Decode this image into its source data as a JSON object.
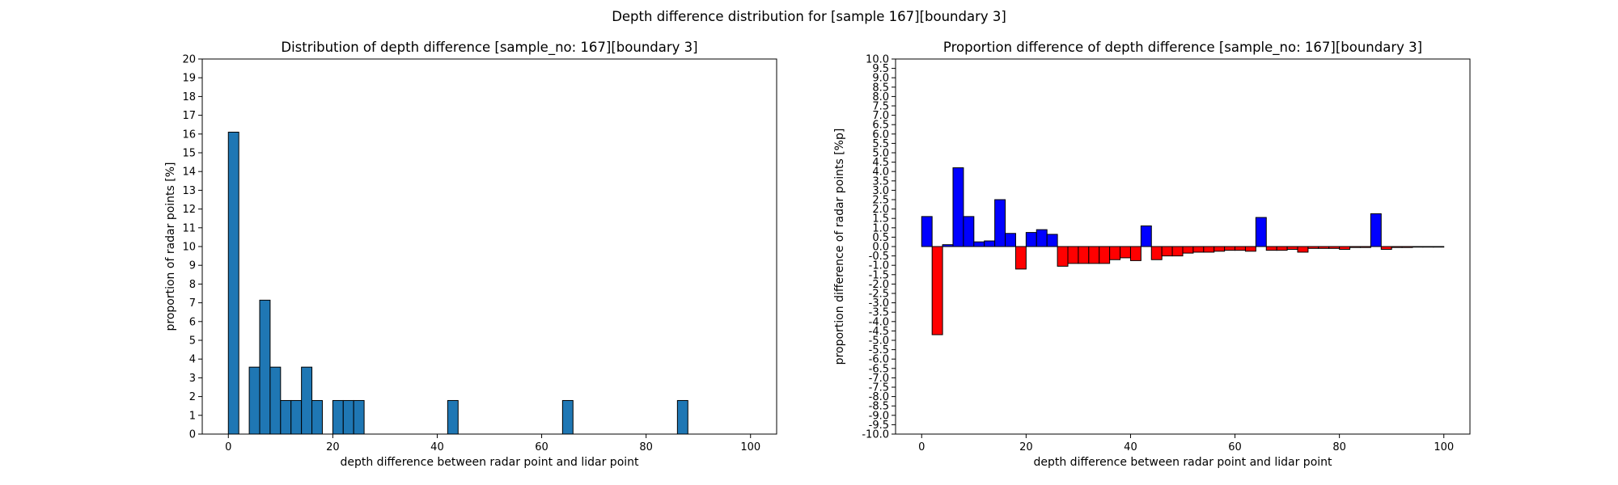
{
  "figure": {
    "suptitle": "Depth difference distribution for [sample 167][boundary 3]"
  },
  "colors": {
    "hist_fill": "#1f77b4",
    "positive": "#0000ff",
    "negative": "#ff0000",
    "edge": "#000000"
  },
  "chart_data": [
    {
      "type": "bar",
      "title": "Distribution of depth difference [sample_no: 167][boundary 3]",
      "xlabel": "depth difference between radar point and lidar point",
      "ylabel": "proportion of radar points [%]",
      "xlim": [
        -5,
        105
      ],
      "ylim": [
        0,
        20
      ],
      "xticks": [
        0,
        20,
        40,
        60,
        80,
        100
      ],
      "yticks": [
        0,
        1,
        2,
        3,
        4,
        5,
        6,
        7,
        8,
        9,
        10,
        11,
        12,
        13,
        14,
        15,
        16,
        17,
        18,
        19,
        20
      ],
      "bin_width": 2,
      "bins": [
        {
          "x": 1,
          "value": 16.1
        },
        {
          "x": 5,
          "value": 3.57
        },
        {
          "x": 7,
          "value": 7.14
        },
        {
          "x": 9,
          "value": 3.57
        },
        {
          "x": 11,
          "value": 1.79
        },
        {
          "x": 13,
          "value": 1.79
        },
        {
          "x": 15,
          "value": 3.57
        },
        {
          "x": 17,
          "value": 1.79
        },
        {
          "x": 21,
          "value": 1.79
        },
        {
          "x": 23,
          "value": 1.79
        },
        {
          "x": 25,
          "value": 1.79
        },
        {
          "x": 43,
          "value": 1.79
        },
        {
          "x": 65,
          "value": 1.79
        },
        {
          "x": 87,
          "value": 1.79
        }
      ]
    },
    {
      "type": "bar",
      "title": "Proportion difference of depth difference [sample_no: 167][boundary 3]",
      "xlabel": "depth difference between radar point and lidar point",
      "ylabel": "proportion difference of radar points [%p]",
      "xlim": [
        -5,
        105
      ],
      "ylim": [
        -10,
        10
      ],
      "xticks": [
        0,
        20,
        40,
        60,
        80,
        100
      ],
      "yticks": [
        -10.0,
        -9.5,
        -9.0,
        -8.5,
        -8.0,
        -7.5,
        -7.0,
        -6.5,
        -6.0,
        -5.5,
        -5.0,
        -4.5,
        -4.0,
        -3.5,
        -3.0,
        -2.5,
        -2.0,
        -1.5,
        -1.0,
        -0.5,
        0.0,
        0.5,
        1.0,
        1.5,
        2.0,
        2.5,
        3.0,
        3.5,
        4.0,
        4.5,
        5.0,
        5.5,
        6.0,
        6.5,
        7.0,
        7.5,
        8.0,
        8.5,
        9.0,
        9.5,
        10.0
      ],
      "bin_width": 2,
      "bins": [
        {
          "x": 1,
          "value": 1.6
        },
        {
          "x": 3,
          "value": -4.7
        },
        {
          "x": 5,
          "value": 0.1
        },
        {
          "x": 7,
          "value": 4.2
        },
        {
          "x": 9,
          "value": 1.6
        },
        {
          "x": 11,
          "value": 0.25
        },
        {
          "x": 13,
          "value": 0.3
        },
        {
          "x": 15,
          "value": 2.5
        },
        {
          "x": 17,
          "value": 0.7
        },
        {
          "x": 19,
          "value": -1.2
        },
        {
          "x": 21,
          "value": 0.75
        },
        {
          "x": 23,
          "value": 0.9
        },
        {
          "x": 25,
          "value": 0.65
        },
        {
          "x": 27,
          "value": -1.05
        },
        {
          "x": 29,
          "value": -0.9
        },
        {
          "x": 31,
          "value": -0.9
        },
        {
          "x": 33,
          "value": -0.9
        },
        {
          "x": 35,
          "value": -0.9
        },
        {
          "x": 37,
          "value": -0.7
        },
        {
          "x": 39,
          "value": -0.6
        },
        {
          "x": 41,
          "value": -0.75
        },
        {
          "x": 43,
          "value": 1.1
        },
        {
          "x": 45,
          "value": -0.7
        },
        {
          "x": 47,
          "value": -0.5
        },
        {
          "x": 49,
          "value": -0.5
        },
        {
          "x": 51,
          "value": -0.35
        },
        {
          "x": 53,
          "value": -0.3
        },
        {
          "x": 55,
          "value": -0.3
        },
        {
          "x": 57,
          "value": -0.25
        },
        {
          "x": 59,
          "value": -0.2
        },
        {
          "x": 61,
          "value": -0.2
        },
        {
          "x": 63,
          "value": -0.25
        },
        {
          "x": 65,
          "value": 1.55
        },
        {
          "x": 67,
          "value": -0.2
        },
        {
          "x": 69,
          "value": -0.2
        },
        {
          "x": 71,
          "value": -0.15
        },
        {
          "x": 73,
          "value": -0.3
        },
        {
          "x": 75,
          "value": -0.1
        },
        {
          "x": 77,
          "value": -0.1
        },
        {
          "x": 79,
          "value": -0.1
        },
        {
          "x": 81,
          "value": -0.15
        },
        {
          "x": 83,
          "value": -0.05
        },
        {
          "x": 85,
          "value": -0.05
        },
        {
          "x": 87,
          "value": 1.75
        },
        {
          "x": 89,
          "value": -0.15
        },
        {
          "x": 91,
          "value": -0.05
        },
        {
          "x": 93,
          "value": -0.05
        },
        {
          "x": 95,
          "value": -0.03
        },
        {
          "x": 97,
          "value": -0.03
        },
        {
          "x": 99,
          "value": -0.03
        }
      ]
    }
  ]
}
